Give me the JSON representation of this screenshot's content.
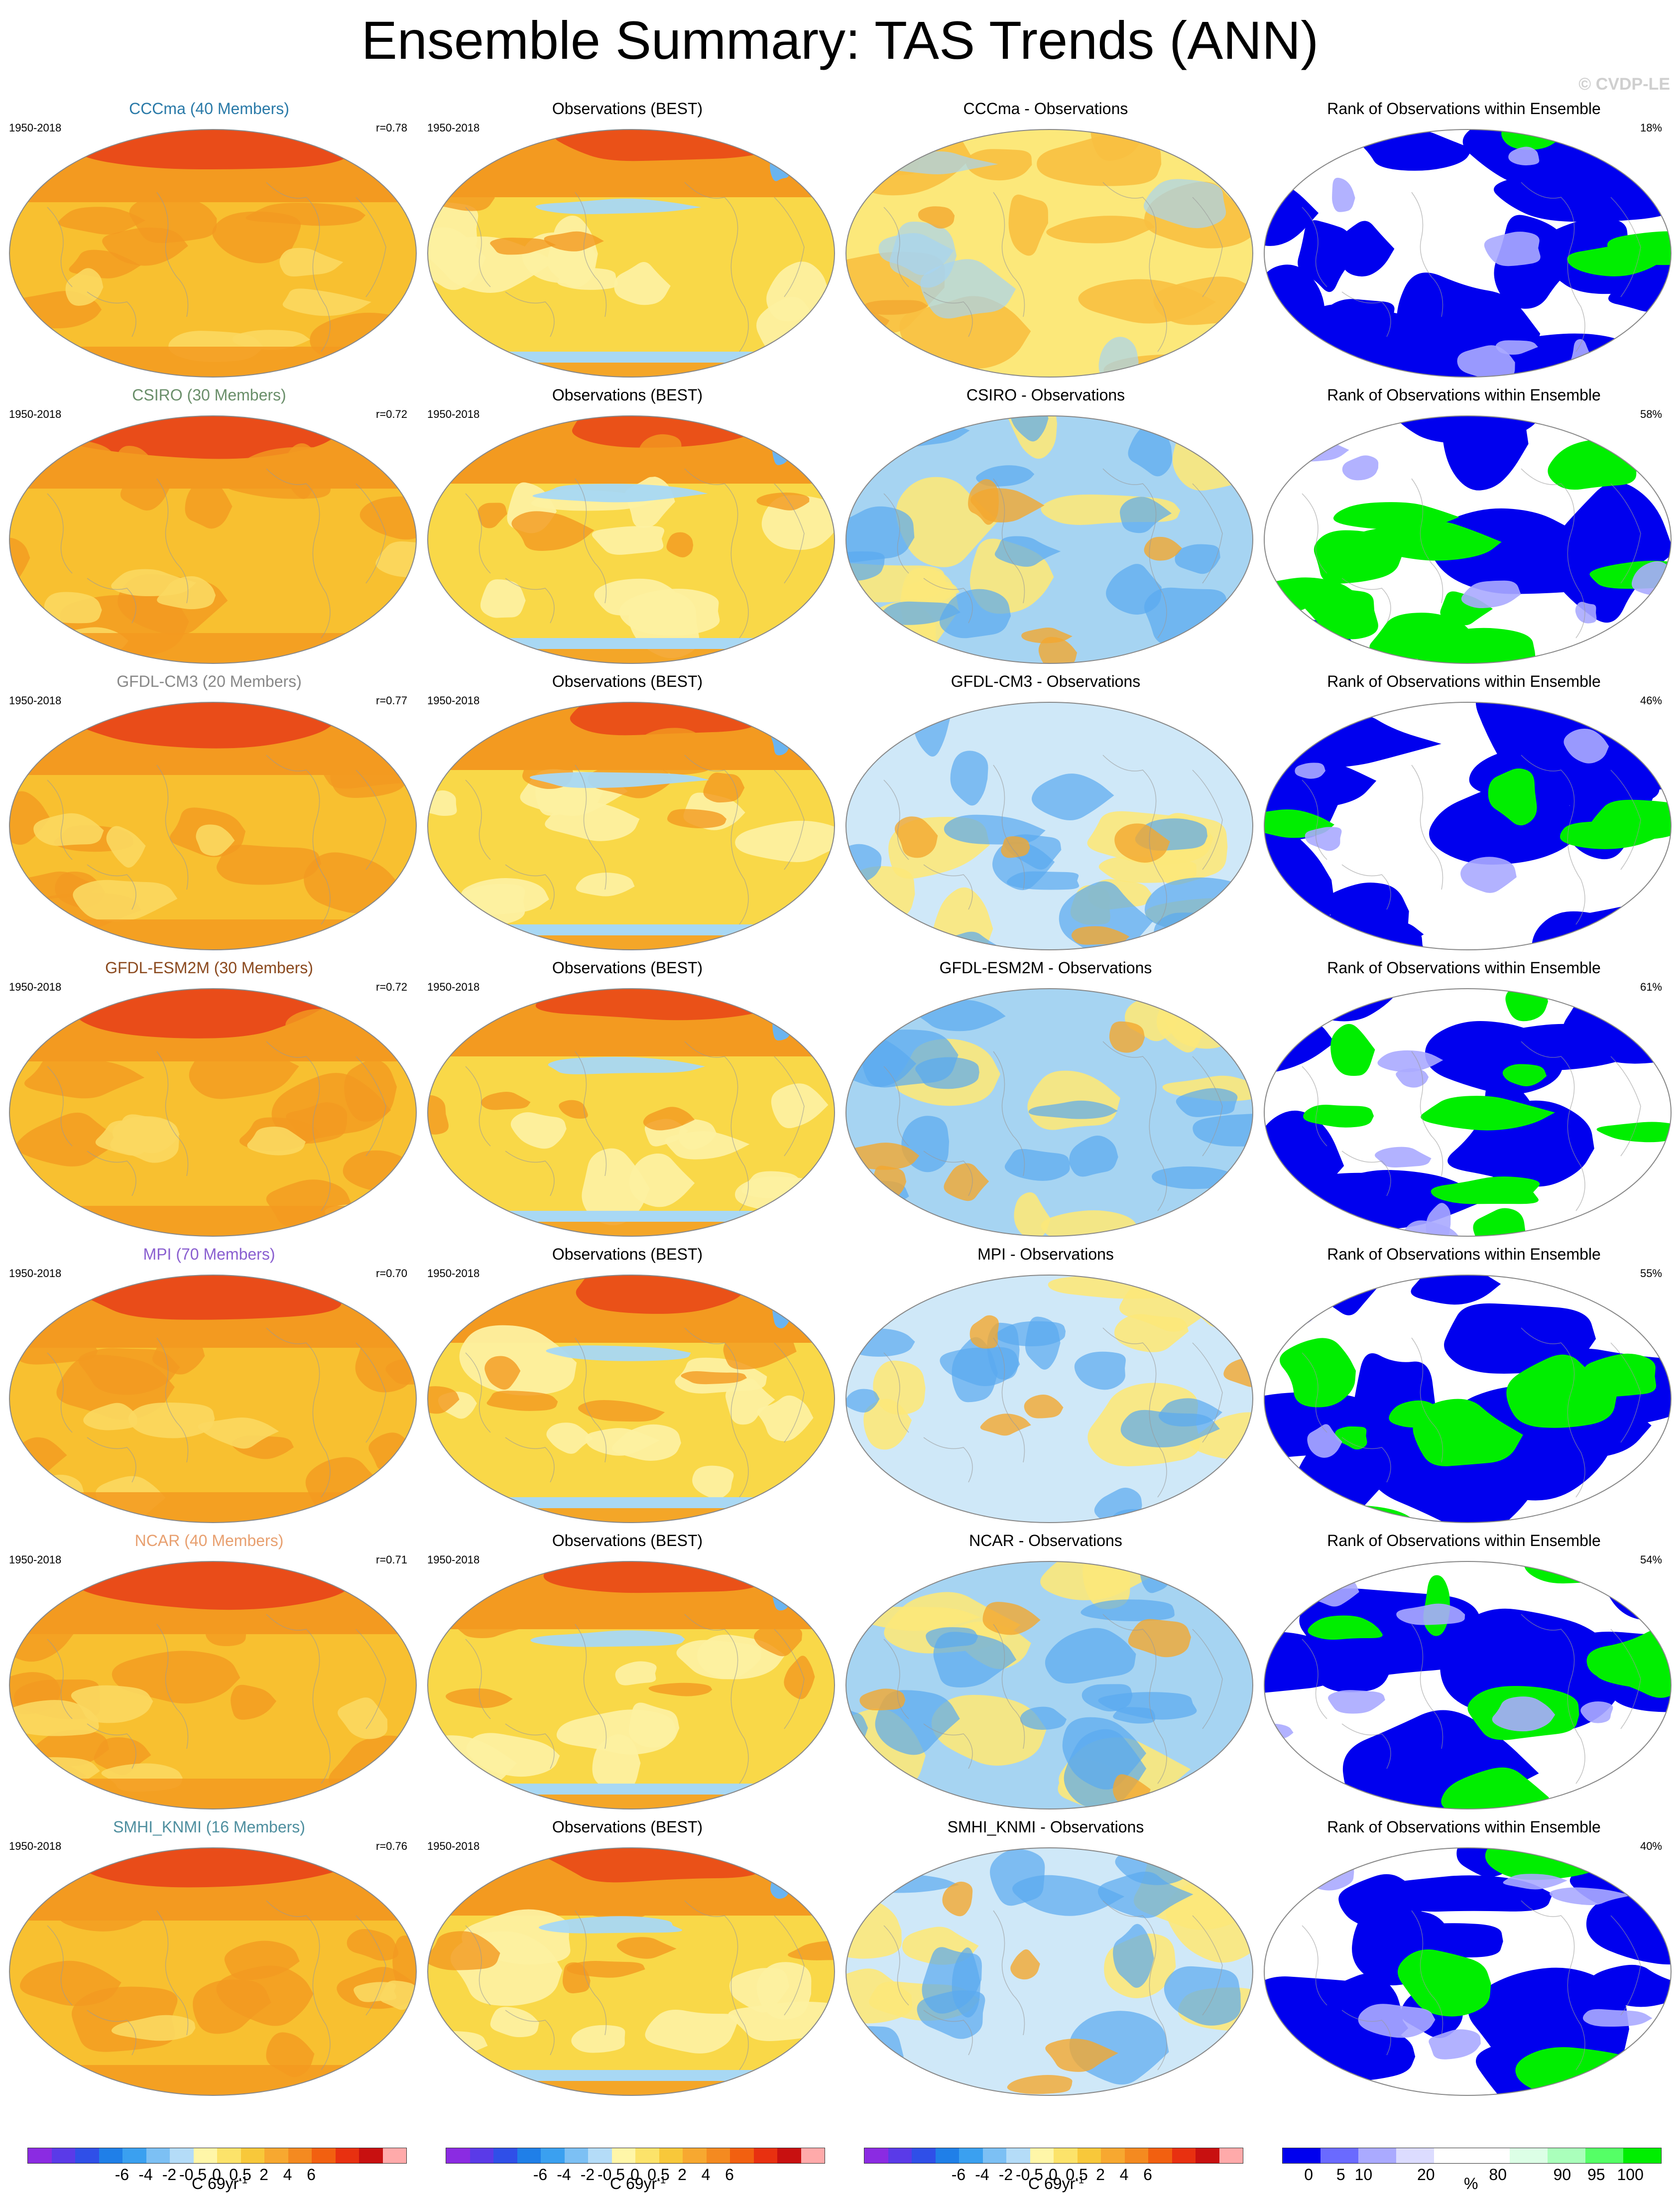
{
  "title": "Ensemble Summary: TAS Trends (ANN)",
  "watermark": "© CVDP-LE",
  "period": "1950-2018",
  "obs_title": "Observations (BEST)",
  "rank_title": "Rank of Observations within Ensemble",
  "rows": [
    {
      "model": "CCCma (40 Members)",
      "model_color": "#2a7aa8",
      "r": "r=0.78",
      "diff": "CCCma - Observations",
      "rank_pct": "18%",
      "diff_tone": "warm",
      "rank_tone": "low"
    },
    {
      "model": "CSIRO (30 Members)",
      "model_color": "#6a8f6a",
      "r": "r=0.72",
      "diff": "CSIRO - Observations",
      "rank_pct": "58%",
      "diff_tone": "cool",
      "rank_tone": "high"
    },
    {
      "model": "GFDL-CM3 (20 Members)",
      "model_color": "#888888",
      "r": "r=0.77",
      "diff": "GFDL-CM3 - Observations",
      "rank_pct": "46%",
      "diff_tone": "mixed",
      "rank_tone": "low"
    },
    {
      "model": "GFDL-ESM2M (30 Members)",
      "model_color": "#8b4a1f",
      "r": "r=0.72",
      "diff": "GFDL-ESM2M - Observations",
      "rank_pct": "61%",
      "diff_tone": "cool",
      "rank_tone": "mixed"
    },
    {
      "model": "MPI (70 Members)",
      "model_color": "#8a5fd0",
      "r": "r=0.70",
      "diff": "MPI - Observations",
      "rank_pct": "55%",
      "diff_tone": "mixed",
      "rank_tone": "mixed"
    },
    {
      "model": "NCAR (40 Members)",
      "model_color": "#e8a070",
      "r": "r=0.71",
      "diff": "NCAR - Observations",
      "rank_pct": "54%",
      "diff_tone": "cool",
      "rank_tone": "mixed"
    },
    {
      "model": "SMHI_KNMI (16 Members)",
      "model_color": "#4f8f9f",
      "r": "r=0.76",
      "diff": "SMHI_KNMI - Observations",
      "rank_pct": "40%",
      "diff_tone": "mixed",
      "rank_tone": "low"
    }
  ],
  "colorbar_trend": {
    "colors": [
      "#8b2be2",
      "#5a3ae8",
      "#2f4fe8",
      "#1f7fe8",
      "#3aa0f0",
      "#7cc0f4",
      "#b4dcf8",
      "#fff6a8",
      "#fce36a",
      "#f8c83a",
      "#f7a830",
      "#f48a20",
      "#f26010",
      "#e83010",
      "#c81010",
      "#ffaaaa"
    ],
    "labels": [
      "-6",
      "-4",
      "-2",
      "-0.5",
      "0",
      "0.5",
      "2",
      "4",
      "6"
    ],
    "unit": "C 69yr",
    "unit_sup": "-1"
  },
  "colorbar_rank": {
    "colors": [
      "#0000ee",
      "#6a6aff",
      "#aaaaff",
      "#dcdcff",
      "#ffffff",
      "#ffffff",
      "#dcffe6",
      "#aaffbb",
      "#55ff66",
      "#00ee00"
    ],
    "labels": [
      "0",
      "5",
      "10",
      "20",
      "80",
      "90",
      "95",
      "100"
    ],
    "unit": "%"
  },
  "palette": {
    "model_base": "#f8c030",
    "model_warm": "#f39a20",
    "model_hot": "#e84418",
    "obs_base": "#f9d848",
    "obs_light": "#fdf0a0",
    "obs_blue": "#a8d8f4",
    "diff_yellow": "#fce87a",
    "diff_blue": "#a6d4f2",
    "diff_deep": "#5aaaf0",
    "rank_blue": "#0000ee",
    "rank_green": "#00ee00",
    "map_outline": "#888888",
    "land_line": "#999999"
  }
}
